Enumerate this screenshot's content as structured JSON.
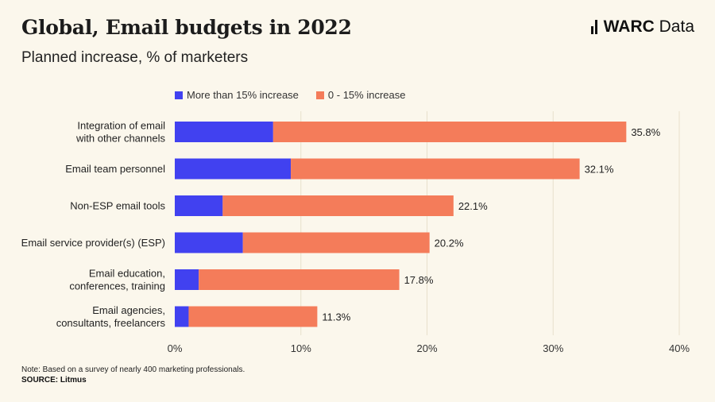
{
  "header": {
    "title": "Global, Email budgets in 2022",
    "subtitle": "Planned increase, % of marketers",
    "brand_bold": "WARC",
    "brand_light": "Data"
  },
  "footer": {
    "note": "Note: Based on a survey of nearly 400 marketing professionals.",
    "source": "SOURCE: Litmus"
  },
  "colors": {
    "series_1": "#4141f0",
    "series_2": "#f47c5a",
    "gridline": "#e8e0cc"
  },
  "chart_data": {
    "type": "bar",
    "orientation": "horizontal",
    "stacked": true,
    "title": "Global, Email budgets in 2022",
    "subtitle": "Planned increase, % of marketers",
    "categories": [
      [
        "Integration of email",
        "with other channels"
      ],
      [
        "Email team personnel"
      ],
      [
        "Non-ESP email tools"
      ],
      [
        "Email service provider(s) (ESP)"
      ],
      [
        "Email education,",
        "conferences, training"
      ],
      [
        "Email agencies,",
        "consultants, freelancers"
      ]
    ],
    "series": [
      {
        "name": "More than 15% increase",
        "values": [
          7.8,
          9.2,
          3.8,
          5.4,
          1.9,
          1.1
        ]
      },
      {
        "name": "0 - 15% increase",
        "values": [
          28.0,
          22.9,
          18.3,
          14.8,
          15.9,
          10.2
        ]
      }
    ],
    "totals": [
      "35.8%",
      "32.1%",
      "22.1%",
      "20.2%",
      "17.8%",
      "11.3%"
    ],
    "x_ticks": [
      0,
      10,
      20,
      30,
      40
    ],
    "x_tick_labels": [
      "0%",
      "10%",
      "20%",
      "30%",
      "40%"
    ],
    "xlim": [
      0,
      40
    ],
    "grid": true,
    "legend_position": "top"
  }
}
